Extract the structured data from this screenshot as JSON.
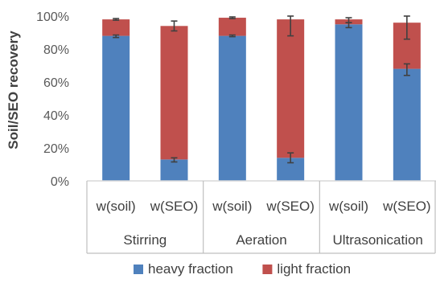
{
  "chart_data": {
    "type": "bar",
    "stacked": true,
    "ylabel": "Soil/SEO recovery",
    "xlabel": "",
    "ylim": [
      0,
      100
    ],
    "y_ticks": [
      "0%",
      "20%",
      "40%",
      "60%",
      "80%",
      "100%"
    ],
    "groups": [
      "Stirring",
      "Aeration",
      "Ultrasonication"
    ],
    "categories": [
      "w(soil)",
      "w(SEO)",
      "w(soil)",
      "w(SEO)",
      "w(soil)",
      "w(SEO)"
    ],
    "category_group": [
      0,
      0,
      1,
      1,
      2,
      2
    ],
    "series": [
      {
        "name": "heavy fraction",
        "color": "#4f81bd",
        "values": [
          88,
          13,
          88,
          14,
          95,
          68
        ],
        "err_low": [
          1,
          1.5,
          0.5,
          3,
          2,
          4
        ],
        "err_high": [
          0.5,
          1,
          0.5,
          3,
          1,
          3
        ]
      },
      {
        "name": "light fraction",
        "color": "#c0504d",
        "values": [
          10,
          81,
          11,
          84,
          3,
          28
        ],
        "err_low": [
          0.5,
          3,
          0.5,
          10,
          2,
          10
        ],
        "err_high": [
          0.5,
          3,
          0.5,
          2,
          1,
          4
        ]
      }
    ],
    "grid": false,
    "legend_position": "bottom"
  }
}
